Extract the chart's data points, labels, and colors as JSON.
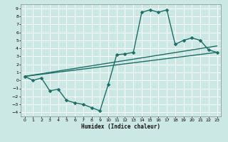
{
  "xlabel": "Humidex (Indice chaleur)",
  "bg_color": "#cce8e4",
  "grid_color": "#ffffff",
  "line_color": "#1a6e65",
  "markersize": 2.5,
  "linewidth": 1.0,
  "xlim": [
    -0.5,
    23.5
  ],
  "ylim": [
    -4.5,
    9.5
  ],
  "xticks": [
    0,
    1,
    2,
    3,
    4,
    5,
    6,
    7,
    8,
    9,
    10,
    11,
    12,
    13,
    14,
    15,
    16,
    17,
    18,
    19,
    20,
    21,
    22,
    23
  ],
  "yticks": [
    -4,
    -3,
    -2,
    -1,
    0,
    1,
    2,
    3,
    4,
    5,
    6,
    7,
    8,
    9
  ],
  "curve_x": [
    0,
    1,
    2,
    3,
    4,
    5,
    6,
    7,
    8,
    9,
    10,
    11,
    12,
    13,
    14,
    15,
    16,
    17,
    18,
    19,
    20,
    21,
    22,
    23
  ],
  "curve_y": [
    0.5,
    0.0,
    0.3,
    -1.3,
    -1.1,
    -2.5,
    -2.8,
    -3.0,
    -3.4,
    -3.8,
    -0.5,
    3.2,
    3.3,
    3.5,
    8.5,
    8.8,
    8.5,
    8.8,
    4.5,
    5.0,
    5.3,
    5.0,
    3.8,
    3.5
  ],
  "line1_x": [
    0,
    23
  ],
  "line1_y": [
    0.5,
    3.5
  ],
  "line2_x": [
    0,
    23
  ],
  "line2_y": [
    0.5,
    4.3
  ]
}
